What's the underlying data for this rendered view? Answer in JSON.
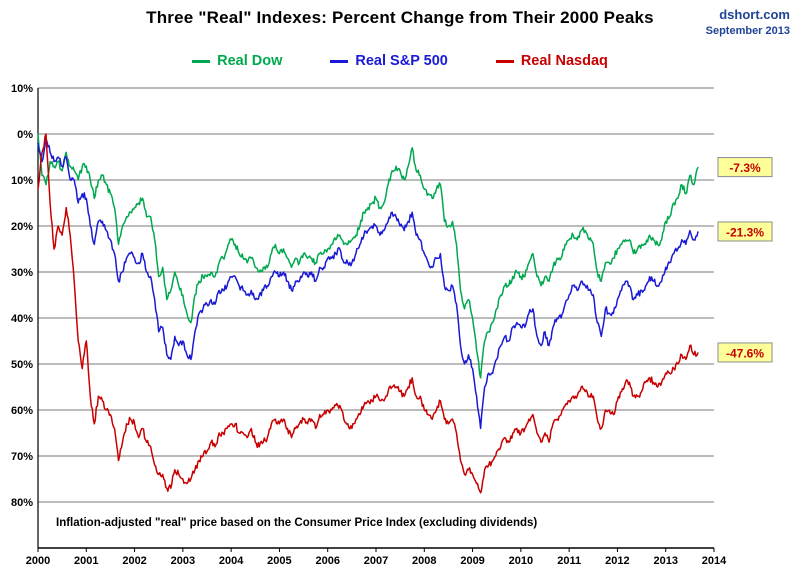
{
  "header": {
    "title": "Three \"Real\" Indexes: Percent Change from Their 2000 Peaks",
    "source": "dshort.com",
    "date": "September 2013"
  },
  "footnote": "Inflation-adjusted \"real\" price based on the Consumer Price Index (excluding dividends)",
  "colors": {
    "dow": "#00A84F",
    "sp500": "#1A1AD6",
    "nasdaq": "#C80000",
    "callout_bg": "#FFFF99",
    "callout_border": "#8c8c8c",
    "callout_text": "#C80000",
    "source_text": "#1F4396",
    "grid": "#7a7a7a",
    "axis": "#000000"
  },
  "chart_data": {
    "type": "line",
    "title": "Three \"Real\" Indexes: Percent Change from Their 2000 Peaks",
    "xlabel": "",
    "ylabel": "",
    "legend_position": "top",
    "grid": "horizontal",
    "xlim": [
      2000,
      2014
    ],
    "ylim": [
      -90,
      10
    ],
    "x_start": 2000.0,
    "x_step_years": 0.0833333,
    "x_ticks": [
      "2000",
      "2001",
      "2002",
      "2003",
      "2004",
      "2005",
      "2006",
      "2007",
      "2008",
      "2009",
      "2010",
      "2011",
      "2012",
      "2013",
      "2014"
    ],
    "y_ticks": [
      {
        "value": 10,
        "label": "10%"
      },
      {
        "value": 0,
        "label": "0%"
      },
      {
        "value": -10,
        "label": "10%"
      },
      {
        "value": -20,
        "label": "20%"
      },
      {
        "value": -30,
        "label": "30%"
      },
      {
        "value": -40,
        "label": "40%"
      },
      {
        "value": -50,
        "label": "50%"
      },
      {
        "value": -60,
        "label": "60%"
      },
      {
        "value": -70,
        "label": "70%"
      },
      {
        "value": -80,
        "label": "80%"
      },
      {
        "value": -90,
        "label": ""
      }
    ],
    "callouts": [
      {
        "label": "-7.3%",
        "value": -7.3
      },
      {
        "label": "-21.3%",
        "value": -21.3
      },
      {
        "label": "-47.6%",
        "value": -47.6
      }
    ],
    "series": [
      {
        "id": "real-dow",
        "name": "Real Dow",
        "color": "#00A84F",
        "end_value_label": "-7.3%",
        "values": [
          0,
          -9,
          -11,
          -6,
          -7,
          -6,
          -8,
          -4,
          -7,
          -8,
          -10,
          -7,
          -7,
          -10,
          -14,
          -10,
          -9,
          -11,
          -13,
          -16,
          -24,
          -20,
          -18,
          -17,
          -16,
          -15,
          -14,
          -18,
          -18,
          -23,
          -31,
          -29,
          -36,
          -34,
          -30,
          -33,
          -35,
          -39,
          -41,
          -35,
          -32,
          -31,
          -31,
          -30,
          -31,
          -28,
          -27,
          -25,
          -23,
          -24,
          -26,
          -27,
          -28,
          -27,
          -29,
          -30,
          -29,
          -29,
          -26,
          -24,
          -26,
          -25,
          -27,
          -29,
          -27,
          -28,
          -26,
          -27,
          -27,
          -28,
          -26,
          -26,
          -25,
          -24,
          -23,
          -22,
          -24,
          -24,
          -23,
          -22,
          -20,
          -17,
          -16,
          -15,
          -14,
          -16,
          -15,
          -11,
          -8,
          -7,
          -8,
          -10,
          -7,
          -3,
          -8,
          -9,
          -12,
          -13,
          -14,
          -12,
          -11,
          -19,
          -20,
          -19,
          -24,
          -34,
          -38,
          -36,
          -40,
          -47,
          -53,
          -45,
          -43,
          -41,
          -38,
          -35,
          -33,
          -33,
          -31,
          -30,
          -31,
          -31,
          -28,
          -26,
          -31,
          -33,
          -31,
          -32,
          -29,
          -27,
          -27,
          -24,
          -23,
          -22,
          -23,
          -21,
          -21,
          -23,
          -24,
          -30,
          -32,
          -28,
          -28,
          -27,
          -25,
          -24,
          -23,
          -23,
          -26,
          -25,
          -24,
          -24,
          -22,
          -23,
          -24,
          -23,
          -19,
          -18,
          -15,
          -14,
          -11,
          -13,
          -9,
          -11,
          -7.3
        ]
      },
      {
        "id": "real-sp500",
        "name": "Real S&P 500",
        "color": "#1A1AD6",
        "end_value_label": "-21.3%",
        "values": [
          -2,
          -6,
          -1,
          -4,
          -6,
          -5,
          -7,
          -5,
          -10,
          -10,
          -15,
          -13,
          -14,
          -20,
          -24,
          -19,
          -19,
          -21,
          -23,
          -26,
          -32,
          -30,
          -27,
          -26,
          -27,
          -28,
          -26,
          -30,
          -31,
          -36,
          -43,
          -42,
          -48,
          -49,
          -44,
          -46,
          -45,
          -48,
          -49,
          -43,
          -39,
          -38,
          -37,
          -36,
          -37,
          -34,
          -34,
          -33,
          -31,
          -31,
          -33,
          -34,
          -35,
          -34,
          -36,
          -35,
          -34,
          -33,
          -31,
          -30,
          -31,
          -30,
          -32,
          -34,
          -32,
          -32,
          -30,
          -31,
          -30,
          -32,
          -29,
          -29,
          -27,
          -27,
          -26,
          -25,
          -28,
          -28,
          -28,
          -26,
          -24,
          -22,
          -21,
          -20,
          -20,
          -22,
          -21,
          -19,
          -17,
          -18,
          -20,
          -21,
          -19,
          -17,
          -22,
          -23,
          -26,
          -28,
          -29,
          -27,
          -26,
          -33,
          -34,
          -33,
          -37,
          -46,
          -50,
          -48,
          -51,
          -57,
          -64,
          -55,
          -52,
          -52,
          -49,
          -46,
          -44,
          -45,
          -42,
          -41,
          -42,
          -42,
          -39,
          -38,
          -44,
          -46,
          -43,
          -46,
          -42,
          -40,
          -40,
          -37,
          -35,
          -33,
          -34,
          -32,
          -33,
          -34,
          -35,
          -41,
          -44,
          -38,
          -39,
          -39,
          -36,
          -34,
          -32,
          -33,
          -36,
          -35,
          -34,
          -33,
          -31,
          -32,
          -33,
          -32,
          -29,
          -28,
          -26,
          -25,
          -23,
          -24,
          -21,
          -23,
          -21.3
        ]
      },
      {
        "id": "real-nasdaq",
        "name": "Real Nasdaq",
        "color": "#C80000",
        "end_value_label": "-47.6%",
        "values": [
          -12,
          -4,
          0,
          -15,
          -25,
          -20,
          -22,
          -16,
          -22,
          -32,
          -45,
          -51,
          -45,
          -57,
          -63,
          -57,
          -58,
          -60,
          -61,
          -64,
          -71,
          -67,
          -63,
          -62,
          -63,
          -66,
          -64,
          -67,
          -68,
          -72,
          -74,
          -74,
          -77,
          -77,
          -73,
          -74,
          -75,
          -76,
          -75,
          -73,
          -71,
          -70,
          -69,
          -67,
          -68,
          -65,
          -65,
          -64,
          -63,
          -63,
          -65,
          -65,
          -66,
          -64,
          -67,
          -68,
          -67,
          -66,
          -63,
          -62,
          -63,
          -62,
          -64,
          -66,
          -64,
          -63,
          -62,
          -63,
          -62,
          -64,
          -61,
          -61,
          -60,
          -60,
          -59,
          -59,
          -62,
          -63,
          -64,
          -62,
          -61,
          -59,
          -58,
          -58,
          -57,
          -58,
          -58,
          -56,
          -55,
          -55,
          -56,
          -57,
          -55,
          -53,
          -57,
          -57,
          -60,
          -61,
          -62,
          -60,
          -58,
          -62,
          -63,
          -62,
          -65,
          -71,
          -74,
          -73,
          -74,
          -76,
          -78,
          -73,
          -72,
          -71,
          -69,
          -68,
          -66,
          -67,
          -65,
          -64,
          -65,
          -64,
          -62,
          -61,
          -65,
          -67,
          -65,
          -67,
          -63,
          -62,
          -61,
          -59,
          -58,
          -57,
          -57,
          -55,
          -56,
          -57,
          -57,
          -62,
          -64,
          -60,
          -60,
          -61,
          -58,
          -56,
          -54,
          -54,
          -57,
          -57,
          -56,
          -54,
          -53,
          -54,
          -55,
          -54,
          -52,
          -52,
          -51,
          -50,
          -48,
          -49,
          -46,
          -48,
          -47.6
        ]
      }
    ]
  }
}
